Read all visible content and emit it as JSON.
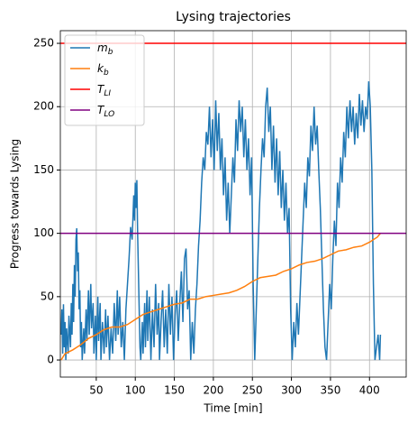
{
  "chart_data": {
    "type": "line",
    "title": "Lysing trajectories",
    "xlabel": "Time [min]",
    "ylabel": "Progress towards Lysing",
    "xlim": [
      4,
      447
    ],
    "ylim": [
      -13.5,
      260
    ],
    "xticks": [
      50,
      100,
      150,
      200,
      250,
      300,
      350,
      400
    ],
    "yticks": [
      0,
      50,
      100,
      150,
      200,
      250
    ],
    "grid": true,
    "legend": "upper left",
    "series": [
      {
        "name": "m_b",
        "color": "#1f77b4",
        "x": [
          5,
          6,
          7,
          8,
          9,
          10,
          11,
          12,
          14,
          15,
          17,
          18,
          19,
          20,
          21,
          22,
          23,
          24,
          25,
          26,
          27,
          28,
          29,
          30,
          31,
          32,
          34,
          35,
          37,
          38,
          40,
          41,
          43,
          44,
          46,
          47,
          49,
          50,
          52,
          53,
          55,
          56,
          58,
          60,
          62,
          63,
          65,
          67,
          69,
          71,
          73,
          75,
          77,
          78,
          80,
          82,
          84,
          86,
          88,
          90,
          92,
          94,
          96,
          98,
          99,
          100,
          101,
          102,
          103,
          104,
          105,
          106,
          107,
          109,
          110,
          112,
          113,
          115,
          116,
          118,
          120,
          122,
          124,
          126,
          128,
          130,
          131,
          133,
          135,
          137,
          139,
          141,
          143,
          145,
          147,
          149,
          151,
          153,
          155,
          157,
          159,
          161,
          163,
          165,
          167,
          169,
          171,
          173,
          175,
          177,
          179,
          181,
          183,
          185,
          187,
          189,
          191,
          193,
          195,
          197,
          199,
          201,
          203,
          205,
          207,
          209,
          211,
          213,
          215,
          217,
          219,
          221,
          223,
          225,
          227,
          229,
          231,
          233,
          235,
          237,
          239,
          241,
          243,
          245,
          247,
          249,
          251,
          253,
          255,
          257,
          259,
          261,
          263,
          265,
          267,
          269,
          271,
          273,
          275,
          277,
          279,
          281,
          283,
          285,
          287,
          289,
          291,
          293,
          295,
          297,
          299,
          301,
          303,
          305,
          307,
          309,
          311,
          313,
          315,
          317,
          319,
          321,
          323,
          325,
          327,
          329,
          331,
          333,
          335,
          337,
          339,
          341,
          343,
          345,
          347,
          349,
          351,
          353,
          355,
          357,
          359,
          361,
          363,
          365,
          367,
          369,
          371,
          373,
          375,
          377,
          379,
          381,
          383,
          385,
          387,
          389,
          391,
          393,
          395,
          397,
          399,
          401,
          403,
          405,
          407,
          409,
          411,
          413,
          414
        ],
        "values": [
          20,
          40,
          5,
          44,
          10,
          30,
          0,
          25,
          5,
          35,
          10,
          45,
          20,
          60,
          30,
          75,
          50,
          95,
          104,
          70,
          85,
          40,
          55,
          10,
          30,
          0,
          25,
          5,
          40,
          15,
          55,
          20,
          60,
          25,
          45,
          5,
          35,
          0,
          50,
          15,
          45,
          0,
          30,
          5,
          40,
          10,
          35,
          0,
          25,
          5,
          45,
          15,
          55,
          20,
          50,
          10,
          30,
          0,
          40,
          60,
          80,
          105,
          95,
          130,
          110,
          140,
          120,
          142,
          100,
          70,
          40,
          10,
          0,
          30,
          5,
          45,
          10,
          55,
          15,
          50,
          0,
          40,
          10,
          60,
          20,
          45,
          0,
          30,
          55,
          10,
          40,
          5,
          60,
          20,
          50,
          0,
          35,
          55,
          15,
          45,
          70,
          30,
          80,
          88,
          40,
          55,
          0,
          30,
          5,
          40,
          60,
          90,
          110,
          140,
          160,
          150,
          180,
          170,
          200,
          160,
          190,
          150,
          205,
          165,
          195,
          150,
          175,
          130,
          160,
          110,
          140,
          100,
          130,
          160,
          140,
          190,
          165,
          205,
          180,
          200,
          160,
          190,
          150,
          175,
          130,
          160,
          60,
          0,
          40,
          80,
          120,
          150,
          175,
          160,
          200,
          215,
          180,
          200,
          150,
          185,
          140,
          175,
          130,
          165,
          120,
          150,
          110,
          140,
          100,
          120,
          40,
          0,
          30,
          10,
          45,
          20,
          50,
          80,
          110,
          140,
          120,
          160,
          145,
          185,
          165,
          200,
          170,
          185,
          150,
          120,
          80,
          40,
          10,
          0,
          30,
          60,
          40,
          80,
          110,
          90,
          140,
          120,
          160,
          140,
          180,
          160,
          200,
          175,
          205,
          180,
          200,
          170,
          195,
          175,
          210,
          185,
          205,
          180,
          200,
          190,
          220,
          200,
          150,
          60,
          0,
          10,
          20,
          0,
          20
        ]
      },
      {
        "name": "k_b",
        "color": "#ff7f0e",
        "x": [
          5,
          10,
          20,
          30,
          40,
          50,
          60,
          70,
          80,
          90,
          100,
          110,
          120,
          130,
          140,
          150,
          160,
          170,
          180,
          190,
          200,
          210,
          220,
          230,
          240,
          250,
          260,
          270,
          280,
          290,
          300,
          310,
          320,
          330,
          340,
          350,
          360,
          370,
          380,
          390,
          400,
          405,
          410,
          414
        ],
        "values": [
          0,
          5,
          8,
          12,
          17,
          20,
          24,
          26,
          26,
          28,
          32,
          36,
          38,
          40,
          42,
          44,
          45,
          48,
          48,
          50,
          51,
          52,
          53,
          55,
          58,
          62,
          65,
          66,
          67,
          70,
          72,
          75,
          77,
          78,
          80,
          83,
          86,
          87,
          89,
          90,
          93,
          95,
          97,
          100
        ]
      }
    ],
    "hlines": [
      {
        "name": "T_LI",
        "color": "#ff0000",
        "value": 250
      },
      {
        "name": "T_LO",
        "color": "#800080",
        "value": 100
      }
    ]
  }
}
